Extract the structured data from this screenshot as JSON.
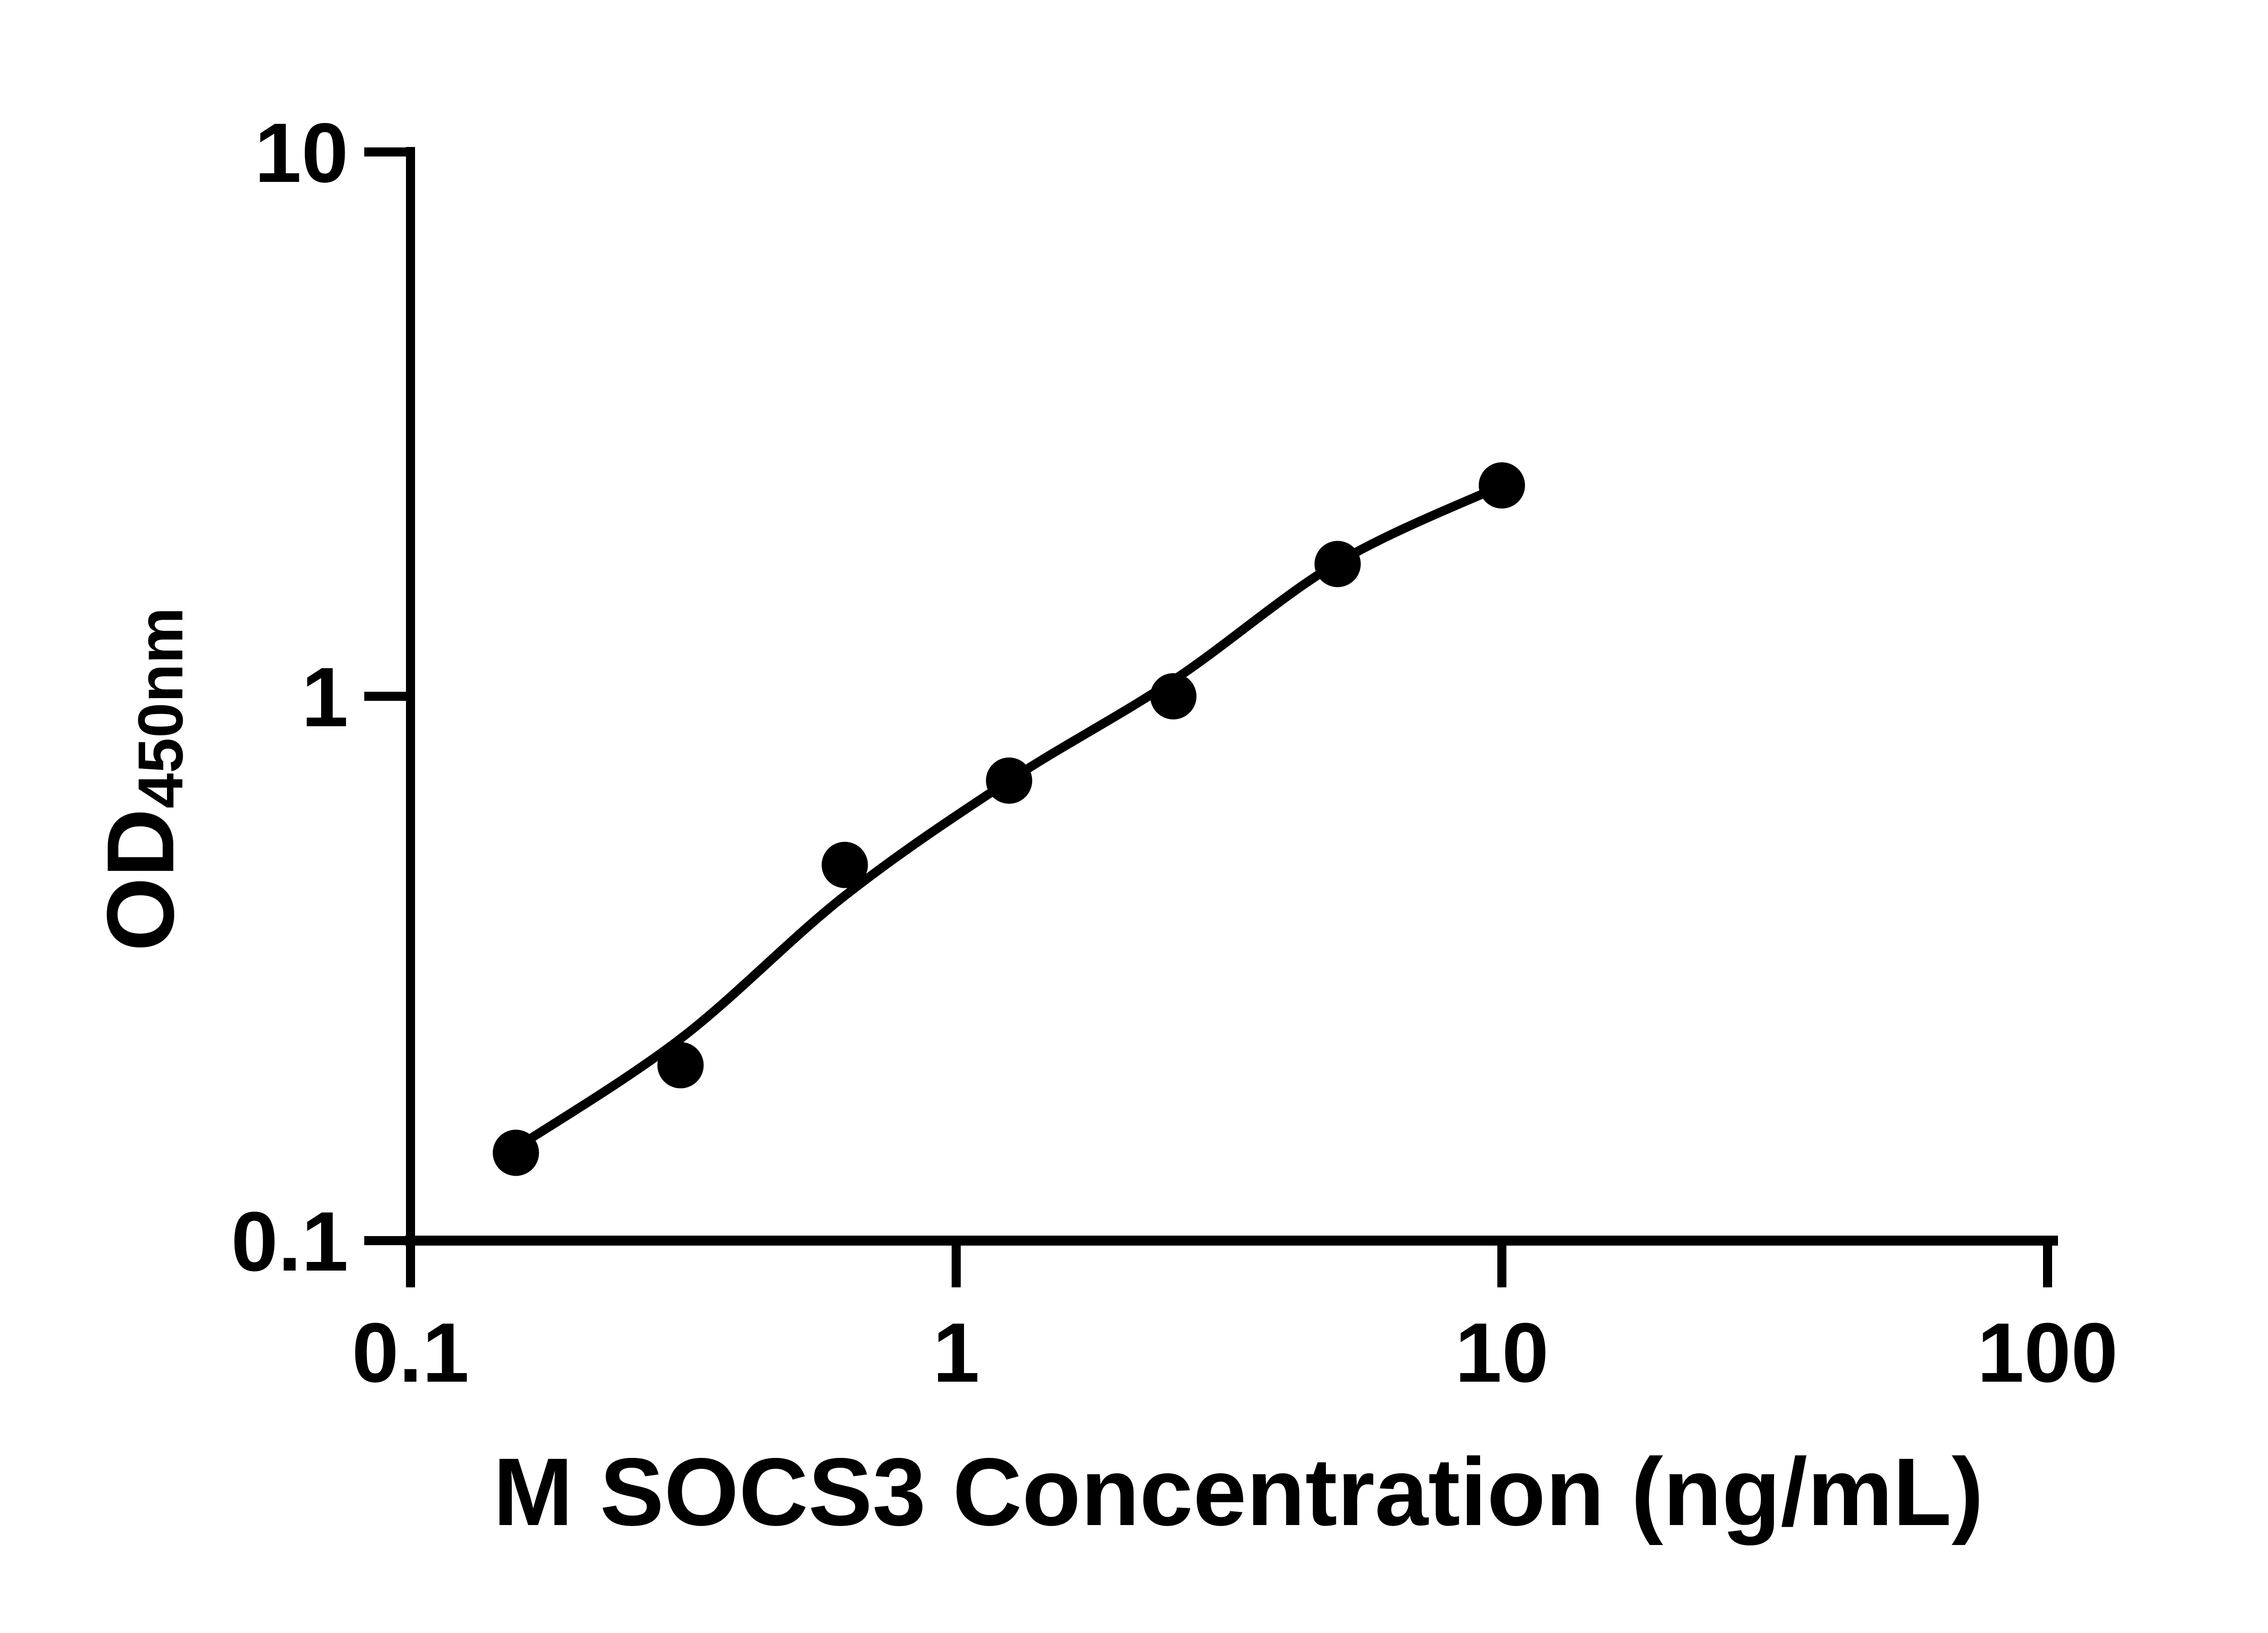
{
  "figure": {
    "background": "#ffffff",
    "ink_color": "#000000"
  },
  "chart_data": {
    "type": "scatter",
    "title": "",
    "xlabel": "M SOCS3 Concentration (ng/mL)",
    "ylabel": "OD",
    "ylabel_subscript": "450nm",
    "x_scale": "log",
    "y_scale": "log",
    "xlim": [
      0.1,
      100
    ],
    "ylim": [
      0.1,
      10
    ],
    "x_ticks": [
      0.1,
      1,
      10,
      100
    ],
    "x_tick_labels": [
      "0.1",
      "1",
      "10",
      "100"
    ],
    "y_ticks": [
      0.1,
      1,
      10
    ],
    "y_tick_labels": [
      "0.1",
      "1",
      "10"
    ],
    "grid": false,
    "legend": false,
    "marker_shape": "circle",
    "marker_color": "#000000",
    "line_color": "#000000",
    "points": {
      "x": [
        0.156,
        0.3125,
        0.625,
        1.25,
        2.5,
        5,
        10
      ],
      "od": [
        0.145,
        0.21,
        0.49,
        0.7,
        1.0,
        1.75,
        2.44
      ]
    },
    "fit_curve": {
      "x": [
        0.156,
        0.3125,
        0.625,
        1.25,
        2.5,
        5,
        10
      ],
      "od": [
        0.148,
        0.235,
        0.43,
        0.7,
        1.07,
        1.76,
        2.44
      ]
    }
  }
}
